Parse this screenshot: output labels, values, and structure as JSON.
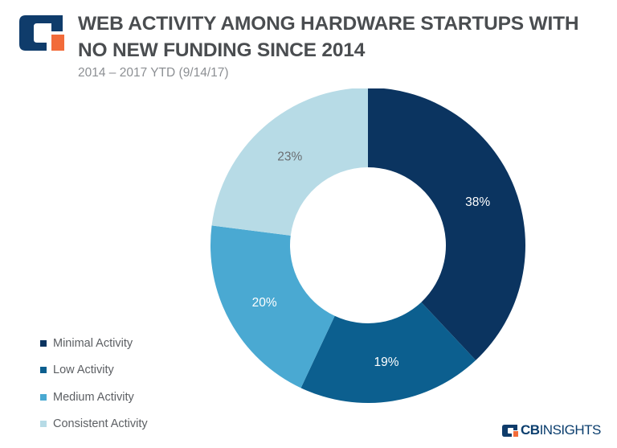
{
  "header": {
    "title": "WEB ACTIVITY AMONG HARDWARE STARTUPS WITH NO NEW FUNDING SINCE 2014",
    "subtitle": "2014 – 2017 YTD (9/14/17)"
  },
  "logo": {
    "colors": {
      "navy": "#0f3c6b",
      "orange": "#f26b3a"
    }
  },
  "brand": {
    "cb": "CB",
    "insights": "INSIGHTS"
  },
  "chart_data": {
    "type": "pie",
    "variant": "donut",
    "title": "WEB ACTIVITY AMONG HARDWARE STARTUPS WITH NO NEW FUNDING SINCE 2014",
    "subtitle": "2014 – 2017 YTD (9/14/17)",
    "legend_position": "bottom-left",
    "slices": [
      {
        "label": "Minimal Activity",
        "value": 38,
        "display": "38%",
        "color": "#0b3460",
        "text_color": "#ffffff"
      },
      {
        "label": "Low Activity",
        "value": 19,
        "display": "19%",
        "color": "#0c5f8f",
        "text_color": "#ffffff"
      },
      {
        "label": "Medium Activity",
        "value": 20,
        "display": "20%",
        "color": "#4aa9d2",
        "text_color": "#ffffff"
      },
      {
        "label": "Consistent Activity",
        "value": 23,
        "display": "23%",
        "color": "#b7dbe6",
        "text_color": "#6b6e72"
      }
    ]
  }
}
